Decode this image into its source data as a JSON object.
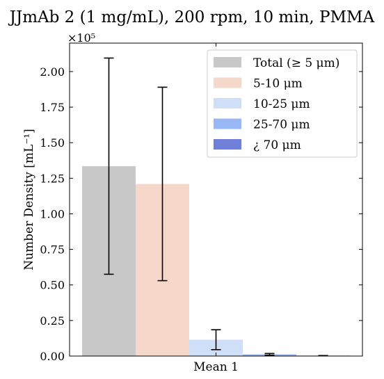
{
  "chart_data": {
    "type": "bar",
    "title": "JJmAb 2 (1 mg/mL), 200 rpm, 10 min, PMMA",
    "ylabel": "Number Density [mL⁻¹]",
    "xlabel": "",
    "y_scale_label": "×10⁵",
    "y_scale_factor": 100000,
    "ylim": [
      0,
      220000
    ],
    "categories": [
      "Mean 1"
    ],
    "y_ticks": [
      0,
      25000,
      50000,
      75000,
      100000,
      125000,
      150000,
      175000,
      200000
    ],
    "y_tick_labels": [
      "0.00",
      "0.25",
      "0.50",
      "0.75",
      "1.00",
      "1.25",
      "1.50",
      "1.75",
      "2.00"
    ],
    "grid": false,
    "legend_position": "top-right",
    "series": [
      {
        "name": "Total (≥ 5 μm)",
        "color": "#c8c8c8",
        "value": 133500,
        "err_low": 57500,
        "err_high": 209500
      },
      {
        "name": "5-10 μm",
        "color": "#f5d8ca",
        "value": 121000,
        "err_low": 53000,
        "err_high": 189000
      },
      {
        "name": "10-25 μm",
        "color": "#d0dff8",
        "value": 11500,
        "err_low": 4500,
        "err_high": 18500
      },
      {
        "name": "25-70 μm",
        "color": "#9ab7f5",
        "value": 1200,
        "err_low": 600,
        "err_high": 1800
      },
      {
        "name": "¿ 70 μm",
        "color": "#7080d8",
        "value": 300,
        "err_low": 250,
        "err_high": 350
      }
    ]
  }
}
